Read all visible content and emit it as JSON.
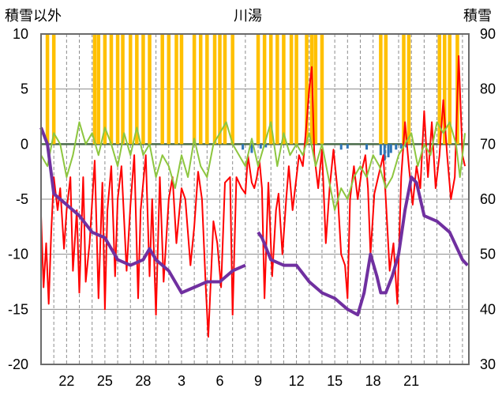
{
  "chart_data": {
    "type": "line",
    "title": "川湯",
    "left_axis_label": "積雪以外",
    "right_axis_label": "積雪",
    "left_axis": {
      "min": -20,
      "max": 10,
      "ticks": [
        10,
        5,
        0,
        -5,
        -10,
        -15,
        -20
      ]
    },
    "right_axis": {
      "min": 30,
      "max": 90,
      "ticks": [
        90,
        80,
        70,
        60,
        50,
        40,
        30
      ]
    },
    "x_axis": {
      "min": 20,
      "max": 53.5,
      "tick_labels": [
        "22",
        "25",
        "28",
        "3",
        "6",
        "9",
        "12",
        "15",
        "18",
        "21"
      ],
      "tick_positions": [
        22,
        25,
        28,
        31,
        34,
        37,
        40,
        43,
        46,
        49
      ]
    },
    "grid": "dashed vertical lines per day, horizontal lines every 5 units",
    "colors": {
      "temperature": "#ff0000",
      "humidity_green": "#8dc63f",
      "snow_depth": "#7030a0",
      "precip_yellow": "#ffc000",
      "precip_blue": "#2e75b6",
      "zero_line": "#4a6b4a"
    },
    "series": [
      {
        "axis": "left",
        "color": "#ff0000",
        "points": [
          [
            20,
            -6.5
          ],
          [
            20.2,
            -13
          ],
          [
            20.4,
            -9
          ],
          [
            20.6,
            -14.5
          ],
          [
            20.8,
            -8
          ],
          [
            21,
            -3
          ],
          [
            21.3,
            -6
          ],
          [
            21.5,
            -4
          ],
          [
            21.8,
            -9.5
          ],
          [
            22,
            -6
          ],
          [
            22.3,
            -3
          ],
          [
            22.5,
            -11.5
          ],
          [
            22.8,
            -6
          ],
          [
            23,
            -13.5
          ],
          [
            23.3,
            -3
          ],
          [
            23.5,
            -12.5
          ],
          [
            23.8,
            -9
          ],
          [
            24.2,
            -1.5
          ],
          [
            24.5,
            -14
          ],
          [
            24.8,
            -3.5
          ],
          [
            25,
            -15
          ],
          [
            25.2,
            -6
          ],
          [
            25.5,
            -2
          ],
          [
            25.8,
            -12
          ],
          [
            26,
            -5
          ],
          [
            26.3,
            -2
          ],
          [
            26.7,
            -11.5
          ],
          [
            27,
            -5.5
          ],
          [
            27.3,
            -1
          ],
          [
            27.6,
            -14
          ],
          [
            27.8,
            -6
          ],
          [
            28.2,
            -1
          ],
          [
            28.5,
            -12
          ],
          [
            28.7,
            -5
          ],
          [
            29,
            -15.5
          ],
          [
            29.3,
            -3
          ],
          [
            29.6,
            -12.5
          ],
          [
            30,
            -5
          ],
          [
            30.3,
            -3
          ],
          [
            30.6,
            -9
          ],
          [
            31,
            -4
          ],
          [
            31.3,
            -5
          ],
          [
            31.7,
            -11
          ],
          [
            32,
            -7.5
          ],
          [
            32.3,
            -2.5
          ],
          [
            32.6,
            -5
          ],
          [
            32.9,
            -13
          ],
          [
            33.1,
            -17.5
          ],
          [
            33.5,
            -7
          ],
          [
            33.8,
            -9
          ],
          [
            34.1,
            -13
          ],
          [
            34.4,
            -3.5
          ],
          [
            34.8,
            -3
          ],
          [
            35,
            -15.5
          ],
          [
            35.3,
            -3
          ],
          [
            35.7,
            -4
          ],
          [
            36,
            -4.5
          ],
          [
            36.2,
            -1
          ],
          [
            36.5,
            -3.5
          ],
          [
            36.7,
            -4
          ],
          [
            36.9,
            -3
          ],
          [
            37.1,
            -1.5
          ],
          [
            37.3,
            -4
          ],
          [
            37.5,
            -14
          ],
          [
            37.8,
            -3.5
          ],
          [
            38.1,
            -12
          ],
          [
            38.4,
            -6
          ],
          [
            38.6,
            -4.5
          ],
          [
            38.9,
            -10
          ],
          [
            39.2,
            -5
          ],
          [
            39.4,
            -2
          ],
          [
            39.7,
            -6
          ],
          [
            40,
            -3
          ],
          [
            40.2,
            -1
          ],
          [
            40.5,
            -2
          ],
          [
            40.8,
            2
          ],
          [
            41,
            5
          ],
          [
            41.2,
            7
          ],
          [
            41.4,
            -1
          ],
          [
            41.7,
            -4
          ],
          [
            42,
            -0.5
          ],
          [
            42.3,
            -9
          ],
          [
            42.6,
            -4
          ],
          [
            42.9,
            -0.5
          ],
          [
            43.2,
            -4
          ],
          [
            43.5,
            -10
          ],
          [
            43.8,
            -11
          ],
          [
            44,
            -14
          ],
          [
            44.2,
            -5
          ],
          [
            44.5,
            -2
          ],
          [
            44.8,
            -5
          ],
          [
            45.1,
            -2.5
          ],
          [
            45.4,
            -1
          ],
          [
            45.6,
            -4
          ],
          [
            45.8,
            -10
          ],
          [
            46.1,
            -4.5
          ],
          [
            46.4,
            -3
          ],
          [
            46.8,
            -1
          ],
          [
            47,
            -5
          ],
          [
            47.3,
            -11.5
          ],
          [
            47.6,
            -9
          ],
          [
            47.9,
            -14.5
          ],
          [
            48.2,
            -3
          ],
          [
            48.5,
            2
          ],
          [
            48.8,
            -2
          ],
          [
            49.1,
            -5.5
          ],
          [
            49.4,
            -2
          ],
          [
            49.7,
            -4
          ],
          [
            50,
            3
          ],
          [
            50.3,
            -3
          ],
          [
            50.6,
            2
          ],
          [
            50.9,
            -4
          ],
          [
            51.2,
            -1
          ],
          [
            51.5,
            4
          ],
          [
            51.8,
            -1
          ],
          [
            52.1,
            -5
          ],
          [
            52.4,
            -3
          ],
          [
            52.7,
            8
          ],
          [
            53,
            -1
          ],
          [
            53.2,
            -2
          ]
        ]
      },
      {
        "axis": "left",
        "color": "#8dc63f",
        "points": [
          [
            20,
            -1
          ],
          [
            20.5,
            -2
          ],
          [
            21,
            1
          ],
          [
            21.5,
            0
          ],
          [
            22,
            -3
          ],
          [
            22.5,
            -1
          ],
          [
            23,
            2
          ],
          [
            23.5,
            0
          ],
          [
            24,
            1
          ],
          [
            24.5,
            -1
          ],
          [
            25,
            1.5
          ],
          [
            25.5,
            0
          ],
          [
            26,
            -2
          ],
          [
            26.5,
            1
          ],
          [
            27,
            -1
          ],
          [
            27.5,
            1.5
          ],
          [
            28,
            -1
          ],
          [
            28.5,
            0
          ],
          [
            29,
            -3
          ],
          [
            29.5,
            -1
          ],
          [
            30,
            -2
          ],
          [
            30.5,
            -4
          ],
          [
            31,
            -1
          ],
          [
            31.5,
            -3
          ],
          [
            32,
            0.5
          ],
          [
            32.5,
            -2
          ],
          [
            33,
            -3
          ],
          [
            33.5,
            0
          ],
          [
            34,
            1
          ],
          [
            34.5,
            2
          ],
          [
            35,
            0
          ],
          [
            35.5,
            -1
          ],
          [
            36,
            -2
          ],
          [
            36.5,
            0.5
          ],
          [
            37,
            -2
          ],
          [
            37.5,
            0
          ],
          [
            38,
            2
          ],
          [
            38.5,
            -2
          ],
          [
            39,
            1
          ],
          [
            39.5,
            -1
          ],
          [
            40,
            0
          ],
          [
            40.5,
            -1
          ],
          [
            41,
            1
          ],
          [
            41.5,
            -2
          ],
          [
            42,
            0
          ],
          [
            42.5,
            -3
          ],
          [
            43,
            -6
          ],
          [
            43.5,
            -4
          ],
          [
            44,
            -5
          ],
          [
            44.5,
            -3
          ],
          [
            45,
            -2
          ],
          [
            45.5,
            -3
          ],
          [
            46,
            -1
          ],
          [
            46.5,
            -2
          ],
          [
            47,
            -4
          ],
          [
            47.5,
            -3
          ],
          [
            48,
            -1
          ],
          [
            48.5,
            0
          ],
          [
            49,
            1
          ],
          [
            49.5,
            -2
          ],
          [
            50,
            0
          ],
          [
            50.5,
            -1
          ],
          [
            51,
            2
          ],
          [
            51.5,
            1
          ],
          [
            52,
            2
          ],
          [
            52.5,
            0
          ],
          [
            52.8,
            -3
          ],
          [
            53.2,
            1
          ]
        ]
      },
      {
        "axis": "right",
        "color": "#7030a0",
        "name": "積雪",
        "points": [
          [
            20,
            73
          ],
          [
            20.5,
            70
          ],
          [
            21,
            61
          ],
          [
            22,
            59
          ],
          [
            23,
            57
          ],
          [
            24,
            54
          ],
          [
            25,
            53
          ],
          [
            26,
            49
          ],
          [
            27,
            48
          ],
          [
            28,
            49
          ],
          [
            28.5,
            51
          ],
          [
            29,
            49
          ],
          [
            30,
            47
          ],
          [
            31,
            43
          ],
          [
            32,
            44
          ],
          [
            33,
            45
          ],
          [
            34,
            45
          ],
          [
            35,
            47
          ],
          [
            36,
            48
          ],
          [
            36.5,
            null
          ],
          [
            37,
            54
          ],
          [
            37.3,
            53
          ],
          [
            38,
            49
          ],
          [
            39,
            48
          ],
          [
            40,
            48
          ],
          [
            41,
            45
          ],
          [
            42,
            43
          ],
          [
            43,
            42
          ],
          [
            44,
            40
          ],
          [
            44.8,
            39
          ],
          [
            45.3,
            43
          ],
          [
            45.8,
            50
          ],
          [
            46.3,
            46
          ],
          [
            46.6,
            43
          ],
          [
            47,
            43
          ],
          [
            47.5,
            46
          ],
          [
            48,
            50
          ],
          [
            48.5,
            58
          ],
          [
            49,
            64
          ],
          [
            49.4,
            63
          ],
          [
            50,
            57
          ],
          [
            51,
            56
          ],
          [
            52,
            54
          ],
          [
            53,
            49
          ],
          [
            53.4,
            48
          ]
        ]
      }
    ],
    "precip_yellow": [
      [
        20.5,
        10
      ],
      [
        21,
        10
      ],
      [
        24.2,
        10
      ],
      [
        24.5,
        10
      ],
      [
        25,
        10
      ],
      [
        25.5,
        10
      ],
      [
        26,
        10
      ],
      [
        26.4,
        10
      ],
      [
        27,
        10
      ],
      [
        27.5,
        10
      ],
      [
        28,
        10
      ],
      [
        28.5,
        10
      ],
      [
        29.5,
        10
      ],
      [
        30,
        10
      ],
      [
        30.6,
        10
      ],
      [
        31,
        10
      ],
      [
        32,
        10
      ],
      [
        32.5,
        10
      ],
      [
        33,
        10
      ],
      [
        33.6,
        10
      ],
      [
        34,
        10
      ],
      [
        34.4,
        10
      ],
      [
        35,
        10
      ],
      [
        37,
        10
      ],
      [
        37.5,
        10
      ],
      [
        38,
        10
      ],
      [
        38.5,
        10
      ],
      [
        39,
        10
      ],
      [
        39.6,
        10
      ],
      [
        40,
        10
      ],
      [
        40.8,
        10
      ],
      [
        41.2,
        10
      ],
      [
        41.5,
        10
      ],
      [
        42,
        10
      ],
      [
        46.6,
        10
      ],
      [
        47,
        10
      ],
      [
        48.4,
        10
      ],
      [
        48.8,
        10
      ],
      [
        51.2,
        10
      ],
      [
        51.6,
        10
      ],
      [
        52,
        10
      ],
      [
        52.6,
        10
      ]
    ],
    "precip_blue": [
      [
        35.8,
        -0.5
      ],
      [
        36.5,
        -0.8
      ],
      [
        37.2,
        -0.4
      ],
      [
        37.6,
        -0.3
      ],
      [
        43.5,
        -0.5
      ],
      [
        44,
        -0.4
      ],
      [
        45.5,
        -0.5
      ],
      [
        46.6,
        -1
      ],
      [
        46.9,
        -1.5
      ],
      [
        47.2,
        -1.2
      ],
      [
        47.4,
        -0.8
      ],
      [
        47.8,
        -0.5
      ],
      [
        48.2,
        -0.4
      ],
      [
        48.6,
        -0.3
      ]
    ]
  }
}
